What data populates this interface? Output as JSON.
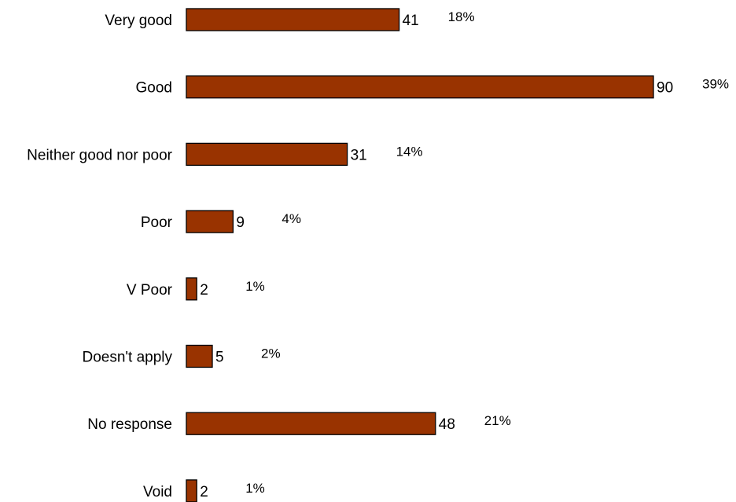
{
  "chart_data": {
    "type": "bar",
    "orientation": "horizontal",
    "categories": [
      "Very good",
      "Good",
      "Neither good nor poor",
      "Poor",
      "V Poor",
      "Doesn't apply",
      "No response",
      "Void"
    ],
    "values": [
      41,
      90,
      31,
      9,
      2,
      5,
      48,
      2
    ],
    "percent_labels": [
      "18%",
      "39%",
      "14%",
      "4%",
      "1%",
      "2%",
      "21%",
      "1%"
    ],
    "title": "",
    "xlabel": "",
    "ylabel": "",
    "xlim": [
      0,
      90
    ],
    "grid": false,
    "legend": "none",
    "bar_color": "#993300",
    "bar_edge_color": "#000000"
  }
}
